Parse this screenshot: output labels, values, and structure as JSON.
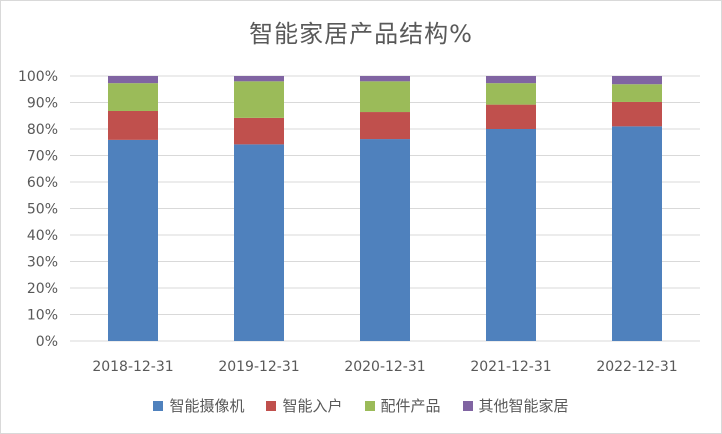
{
  "chart_data": {
    "type": "bar",
    "stacked": true,
    "title": "智能家居产品结构%",
    "categories": [
      "2018-12-31",
      "2019-12-31",
      "2020-12-31",
      "2021-12-31",
      "2022-12-31"
    ],
    "ylim": [
      0,
      100
    ],
    "yticks": [
      "0%",
      "10%",
      "20%",
      "30%",
      "40%",
      "50%",
      "60%",
      "70%",
      "80%",
      "90%",
      "100%"
    ],
    "grid": true,
    "legend_position": "bottom",
    "series": [
      {
        "name": "智能摄像机",
        "color": "#4f81bd",
        "values": [
          75.9,
          74.2,
          76.2,
          80.0,
          81.0
        ]
      },
      {
        "name": "智能入户",
        "color": "#c0504d",
        "values": [
          10.9,
          10.0,
          10.2,
          9.2,
          9.2
        ]
      },
      {
        "name": "配件产品",
        "color": "#9bbb59",
        "values": [
          10.5,
          13.8,
          11.6,
          8.1,
          6.7
        ]
      },
      {
        "name": "其他智能家居",
        "color": "#8064a2",
        "values": [
          2.7,
          2.0,
          2.0,
          2.7,
          3.1
        ]
      }
    ]
  }
}
